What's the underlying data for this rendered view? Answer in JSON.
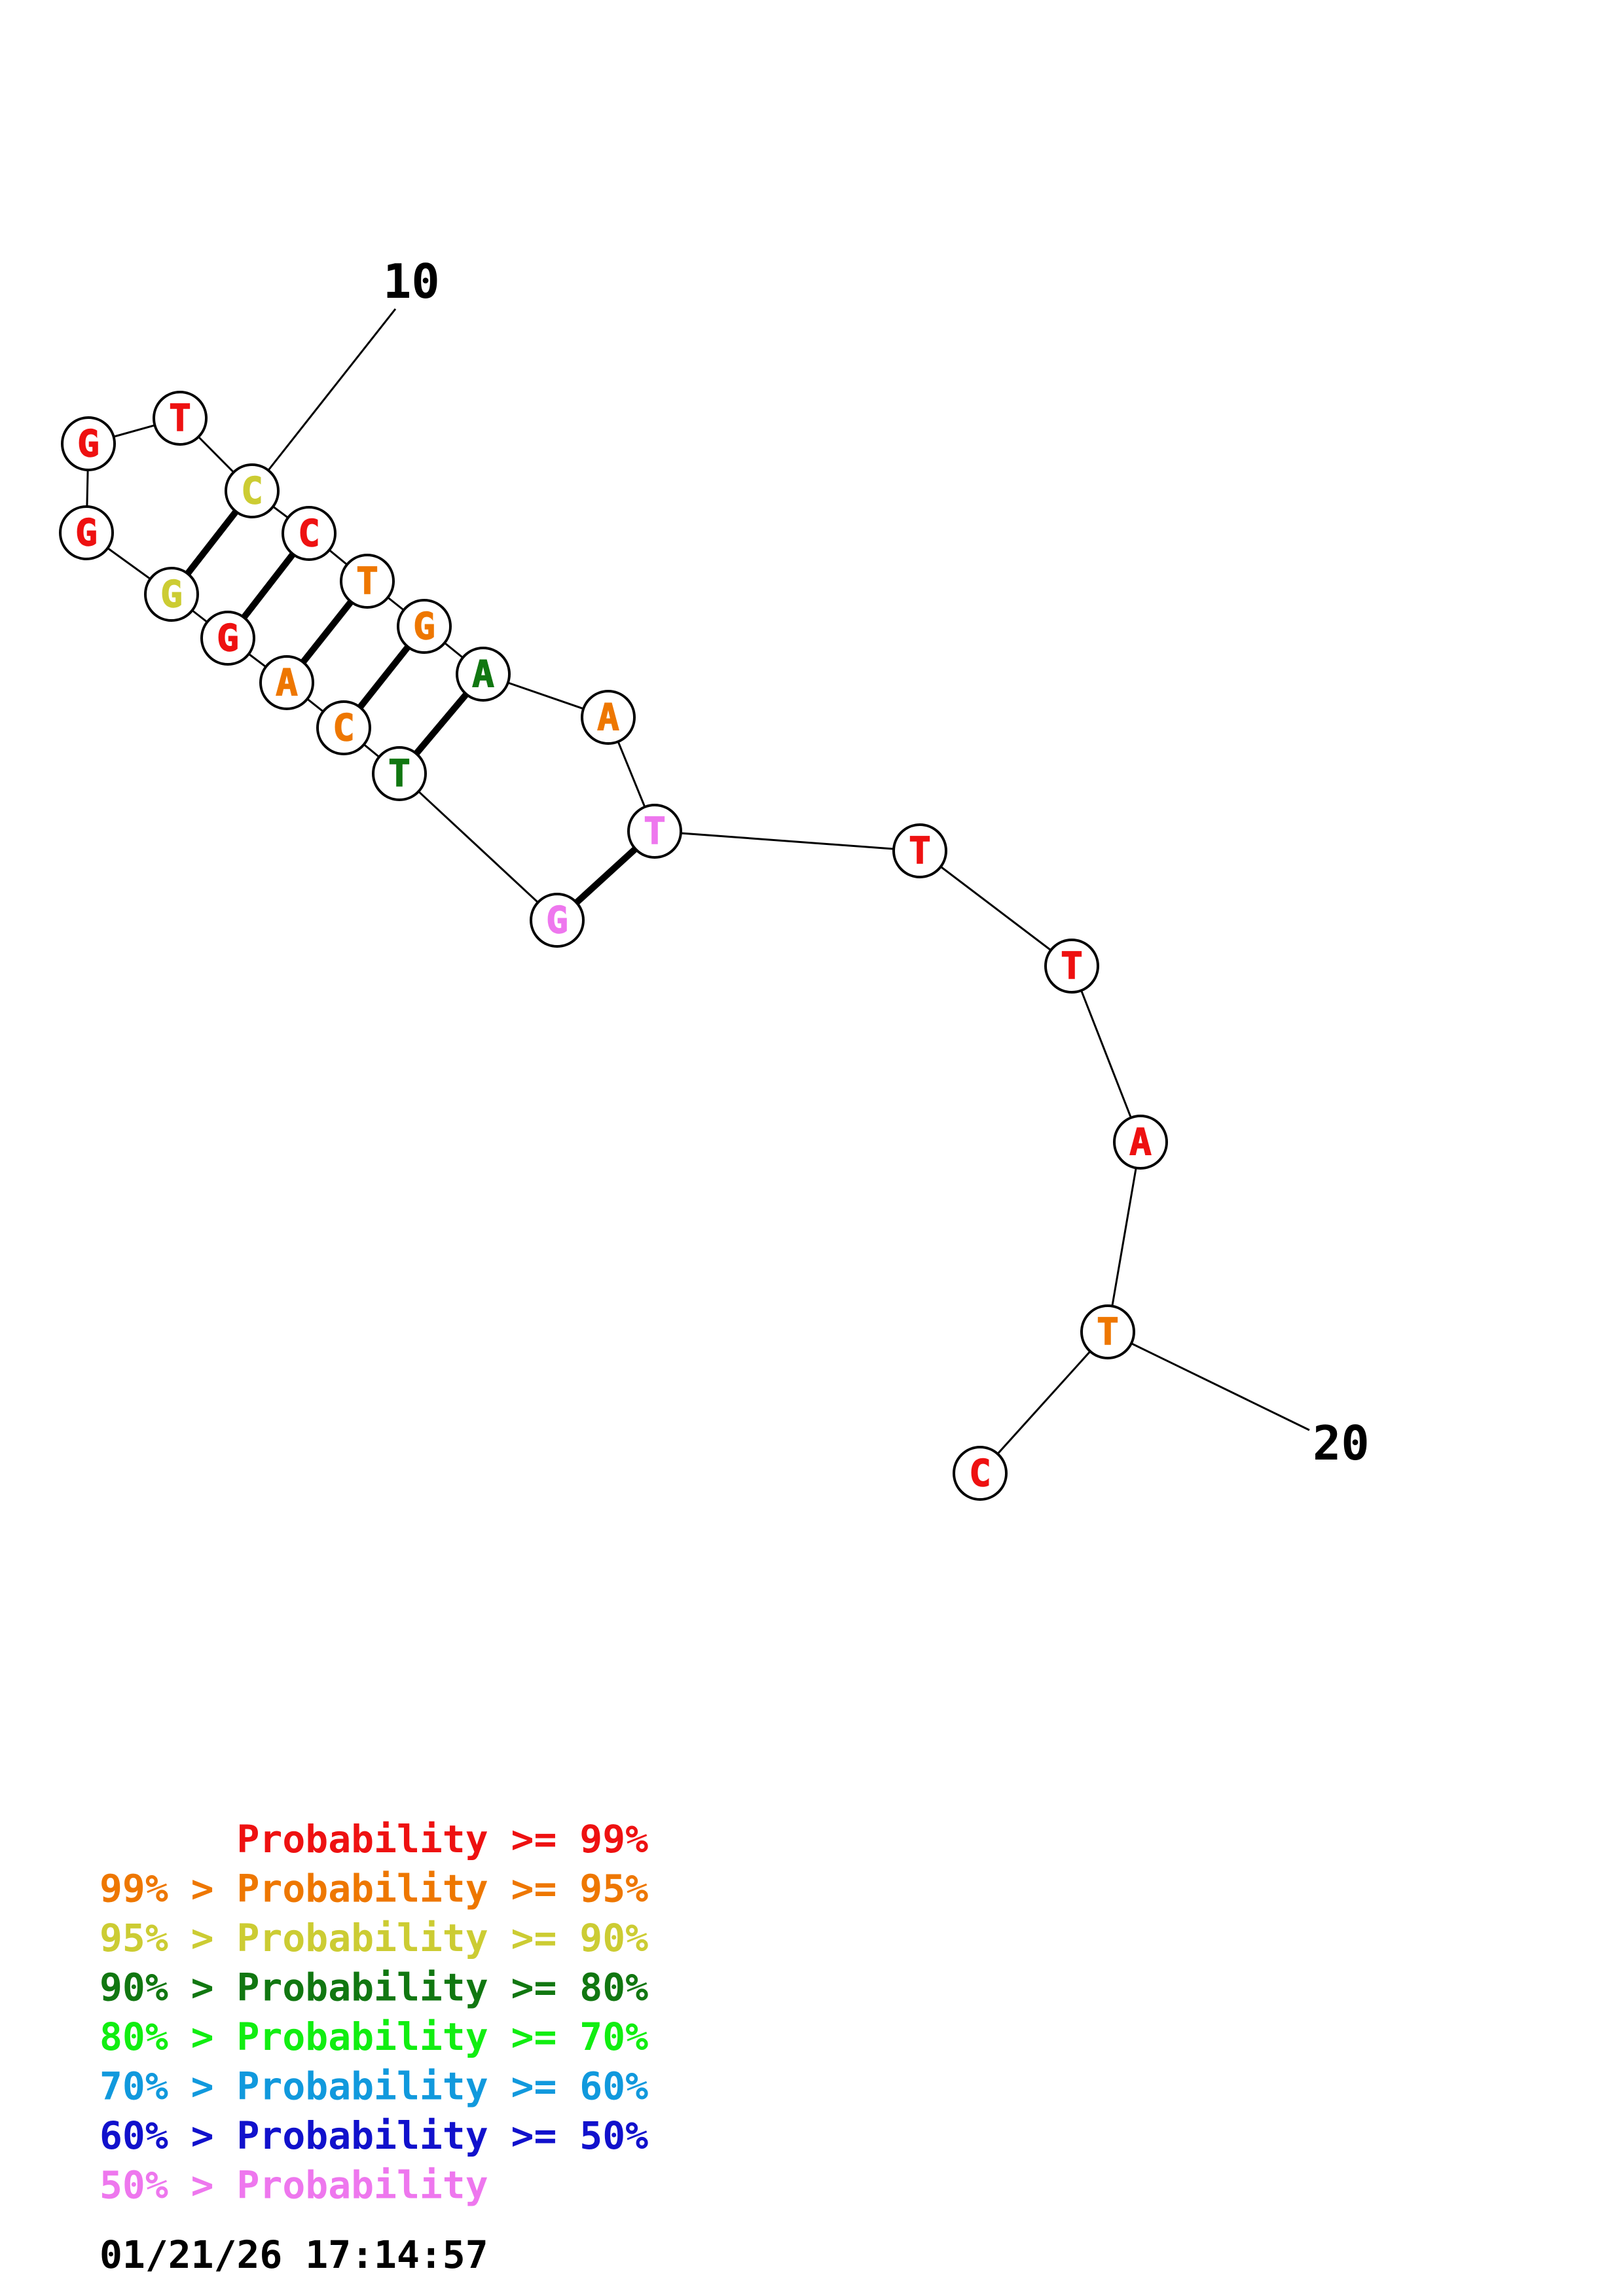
{
  "colors": {
    "p99": "#ee1111",
    "p95": "#ee7700",
    "p90": "#cccc33",
    "p80": "#117711",
    "p70": "#11ee11",
    "p60": "#1199dd",
    "p50": "#1111cc",
    "plow": "#ee77ee"
  },
  "nucleotides": [
    {
      "base": "G",
      "prob": "p99"
    },
    {
      "base": "T",
      "prob": "p99"
    },
    {
      "base": "C",
      "prob": "p90"
    },
    {
      "base": "C",
      "prob": "p99"
    },
    {
      "base": "T",
      "prob": "p95"
    },
    {
      "base": "G",
      "prob": "p95"
    },
    {
      "base": "A",
      "prob": "p80"
    },
    {
      "base": "A",
      "prob": "p95"
    },
    {
      "base": "T",
      "prob": "plow"
    },
    {
      "base": "T",
      "prob": "p99"
    },
    {
      "base": "T",
      "prob": "p99"
    },
    {
      "base": "A",
      "prob": "p99"
    },
    {
      "base": "T",
      "prob": "p95"
    },
    {
      "base": "C",
      "prob": "p99"
    },
    {
      "base": "G",
      "prob": "plow"
    },
    {
      "base": "T",
      "prob": "p80"
    },
    {
      "base": "C",
      "prob": "p95"
    },
    {
      "base": "A",
      "prob": "p95"
    },
    {
      "base": "G",
      "prob": "p99"
    },
    {
      "base": "G",
      "prob": "p90"
    },
    {
      "base": "G",
      "prob": "p99"
    }
  ],
  "backbone": [
    [
      0,
      1
    ],
    [
      1,
      2
    ],
    [
      2,
      3
    ],
    [
      3,
      4
    ],
    [
      4,
      5
    ],
    [
      5,
      6
    ],
    [
      6,
      7
    ],
    [
      7,
      8
    ],
    [
      8,
      9
    ],
    [
      9,
      10
    ],
    [
      10,
      11
    ],
    [
      11,
      12
    ],
    [
      12,
      13
    ],
    [
      8,
      14
    ],
    [
      14,
      15
    ],
    [
      15,
      16
    ],
    [
      16,
      17
    ],
    [
      17,
      18
    ],
    [
      18,
      19
    ],
    [
      19,
      20
    ],
    [
      20,
      0
    ]
  ],
  "pairs": [
    [
      2,
      19
    ],
    [
      3,
      18
    ],
    [
      4,
      17
    ],
    [
      5,
      16
    ],
    [
      6,
      15
    ],
    [
      8,
      14
    ]
  ],
  "index_labels": [
    {
      "text": "10",
      "node": 2
    },
    {
      "text": "20",
      "node": 12
    }
  ],
  "legend": [
    {
      "prefix": "",
      "label": "Probability",
      "suffix": ">= 99%",
      "color": "p99"
    },
    {
      "prefix": "99% >",
      "label": "Probability",
      "suffix": ">= 95%",
      "color": "p95"
    },
    {
      "prefix": "95% >",
      "label": "Probability",
      "suffix": ">= 90%",
      "color": "p90"
    },
    {
      "prefix": "90% >",
      "label": "Probability",
      "suffix": ">= 80%",
      "color": "p80"
    },
    {
      "prefix": "80% >",
      "label": "Probability",
      "suffix": ">= 70%",
      "color": "p70"
    },
    {
      "prefix": "70% >",
      "label": "Probability",
      "suffix": ">= 60%",
      "color": "p60"
    },
    {
      "prefix": "60% >",
      "label": "Probability",
      "suffix": ">= 50%",
      "color": "p50"
    },
    {
      "prefix": "50% >",
      "label": "Probability",
      "suffix": "",
      "color": "plow"
    }
  ],
  "timestamp": "01/21/26 17:14:57"
}
